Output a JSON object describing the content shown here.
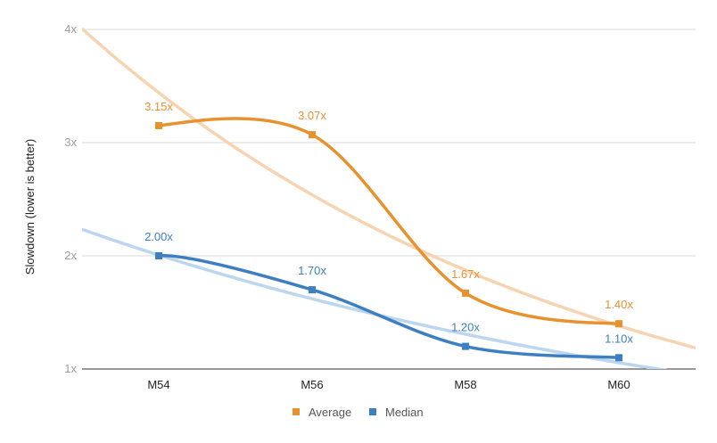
{
  "chart_data": {
    "type": "line",
    "title": "",
    "xlabel": "",
    "ylabel": "Slowdown (lower is better)",
    "categories": [
      "M54",
      "M56",
      "M58",
      "M60"
    ],
    "ylim": [
      1,
      4
    ],
    "yticks": [
      "1x",
      "2x",
      "3x",
      "4x"
    ],
    "grid": true,
    "legend_position": "bottom",
    "series": [
      {
        "name": "Average",
        "color": "#E8912F",
        "trend_color": "#F6D3B1",
        "values": [
          3.15,
          3.07,
          1.67,
          1.4
        ],
        "labels": [
          "3.15x",
          "3.07x",
          "1.67x",
          "1.40x"
        ]
      },
      {
        "name": "Median",
        "color": "#3D7FC1",
        "trend_color": "#BBD6EE",
        "values": [
          2.0,
          1.7,
          1.2,
          1.1
        ],
        "labels": [
          "2.00x",
          "1.70x",
          "1.20x",
          "1.10x"
        ]
      }
    ]
  }
}
